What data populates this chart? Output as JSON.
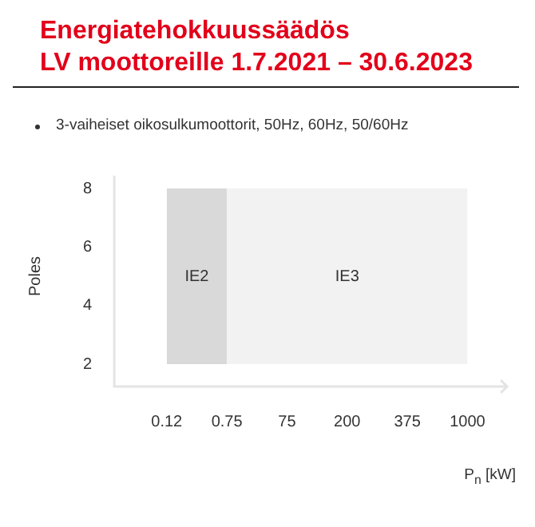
{
  "chart_data": {
    "type": "area",
    "title": "Energiatehokkuussäädös\nLV moottoreille 1.7.2021 – 30.6.2023",
    "subtitle": "3-vaiheiset oikosulkumoottorit, 50Hz, 60Hz, 50/60Hz",
    "categories": [
      "0.12",
      "0.75",
      "75",
      "200",
      "375",
      "1000"
    ],
    "xlabel": "P$_{n}$ [kW]",
    "ylabel": "Poles",
    "ylim": [
      2,
      8
    ],
    "yticks": [
      2,
      4,
      6,
      8
    ],
    "series": [
      {
        "name": "IE2",
        "color": "#d9d9d9",
        "values": [
          8,
          8,
          null,
          null,
          null,
          null
        ]
      },
      {
        "name": "IE3",
        "color": "#f2f2f2",
        "values": [
          null,
          8,
          8,
          8,
          8,
          8
        ]
      }
    ]
  }
}
